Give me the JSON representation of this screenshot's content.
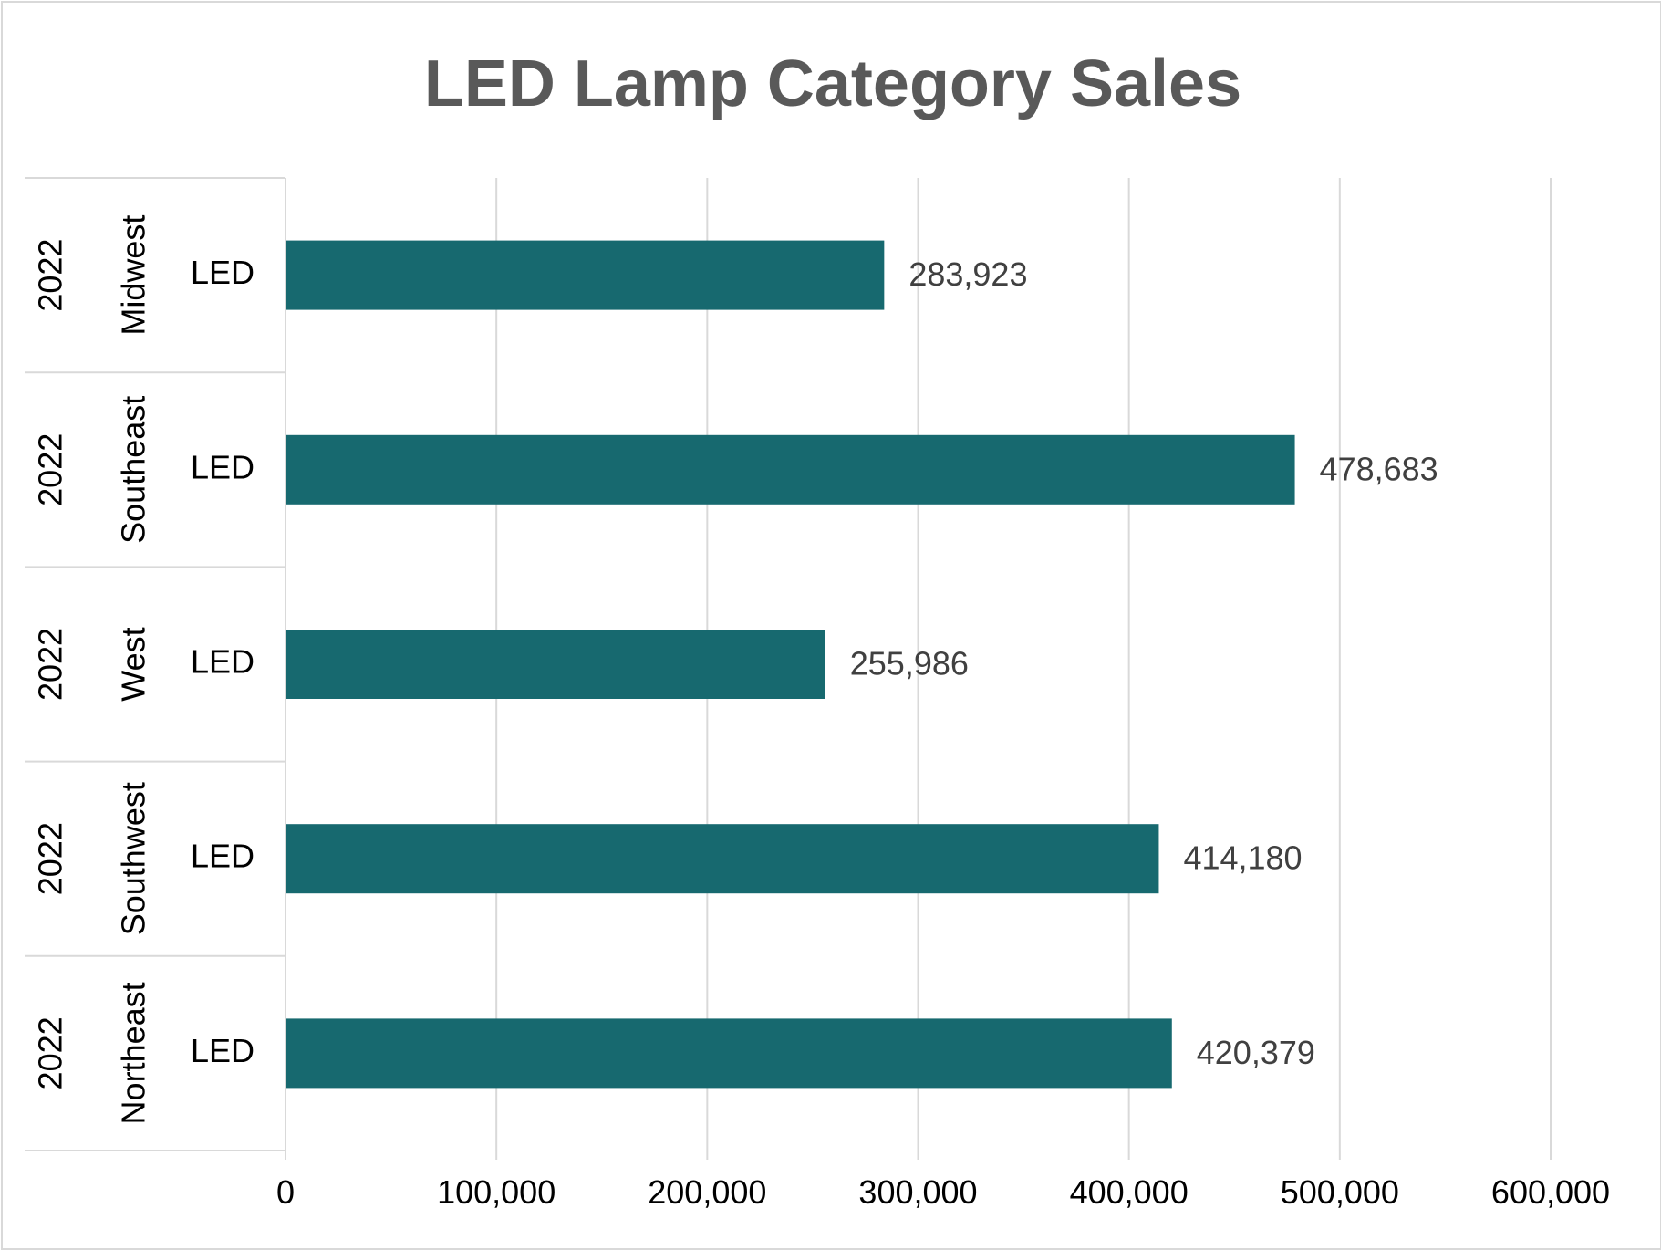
{
  "chart_data": {
    "type": "bar",
    "orientation": "horizontal",
    "title": "LED Lamp Category Sales",
    "categories": [
      {
        "year": "2022",
        "region": "Midwest",
        "category": "LED",
        "value": 283923,
        "label": "283,923"
      },
      {
        "year": "2022",
        "region": "Southeast",
        "category": "LED",
        "value": 478683,
        "label": "478,683"
      },
      {
        "year": "2022",
        "region": "West",
        "category": "LED",
        "value": 255986,
        "label": "255,986"
      },
      {
        "year": "2022",
        "region": "Southwest",
        "category": "LED",
        "value": 414180,
        "label": "414,180"
      },
      {
        "year": "2022",
        "region": "Northeast",
        "category": "LED",
        "value": 420379,
        "label": "420,379"
      }
    ],
    "x_ticks": [
      "0",
      "100,000",
      "200,000",
      "300,000",
      "400,000",
      "500,000",
      "600,000"
    ],
    "xlim": [
      0,
      600000
    ],
    "grid": true,
    "legend": "none"
  },
  "colors": {
    "bar": "#17696f",
    "grid": "#d9d9d9",
    "title": "#595959",
    "data_label": "#404040"
  }
}
